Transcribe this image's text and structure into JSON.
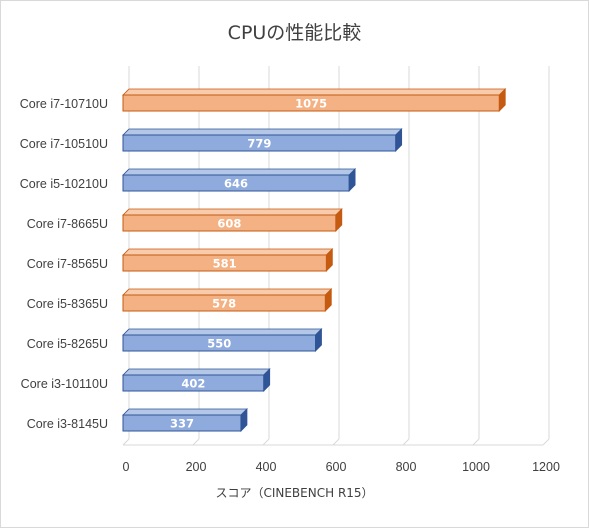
{
  "chart_data": {
    "type": "bar",
    "orientation": "horizontal",
    "title": "CPUの性能比較",
    "xlabel": "スコア（CINEBENCH R15）",
    "ylabel": "",
    "xlim": [
      0,
      1200
    ],
    "xticks": [
      0,
      200,
      400,
      600,
      800,
      1000,
      1200
    ],
    "grid": true,
    "legend": "none",
    "categories": [
      "Core i7-10710U",
      "Core i7-10510U",
      "Core i5-10210U",
      "Core i7-8665U",
      "Core i7-8565U",
      "Core i5-8365U",
      "Core i5-8265U",
      "Core i3-10110U",
      "Core i3-8145U"
    ],
    "values": [
      1075,
      779,
      646,
      608,
      581,
      578,
      550,
      402,
      337
    ],
    "bar_colors": [
      "orange",
      "blue",
      "blue",
      "orange",
      "orange",
      "orange",
      "blue",
      "blue",
      "blue"
    ],
    "colors": {
      "orange": {
        "front": "#f4b183",
        "top": "#f8cbad",
        "side": "#c55a11",
        "stroke": "#c55a11"
      },
      "blue": {
        "front": "#8faadc",
        "top": "#b4c7e7",
        "side": "#2f5597",
        "stroke": "#2f5597"
      },
      "grid": "#d9d9d9"
    }
  }
}
